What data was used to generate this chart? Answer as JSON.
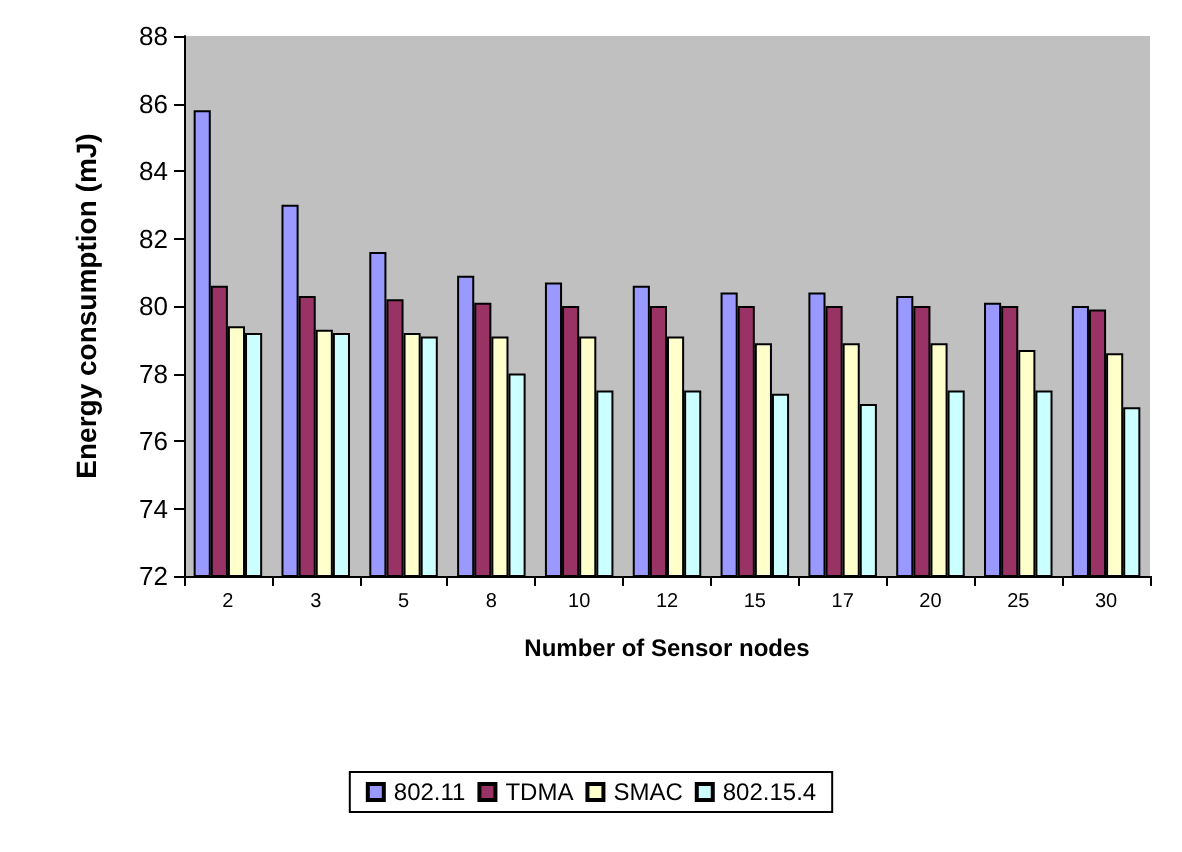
{
  "chart_data": {
    "type": "bar",
    "xlabel": "Number of Sensor nodes",
    "ylabel": "Energy consumption (mJ)",
    "categories": [
      "2",
      "3",
      "5",
      "8",
      "10",
      "12",
      "15",
      "17",
      "20",
      "25",
      "30"
    ],
    "series": [
      {
        "name": "802.11",
        "color": "#9999ff",
        "values": [
          85.8,
          83.0,
          81.6,
          80.9,
          80.7,
          80.6,
          80.4,
          80.4,
          80.3,
          80.1,
          80.0
        ]
      },
      {
        "name": "TDMA",
        "color": "#993366",
        "values": [
          80.6,
          80.3,
          80.2,
          80.1,
          80.0,
          80.0,
          80.0,
          80.0,
          80.0,
          80.0,
          79.9
        ]
      },
      {
        "name": "SMAC",
        "color": "#ffffcc",
        "values": [
          79.4,
          79.3,
          79.2,
          79.1,
          79.1,
          79.1,
          78.9,
          78.9,
          78.9,
          78.7,
          78.6
        ]
      },
      {
        "name": "802.15.4",
        "color": "#ccffff",
        "values": [
          79.2,
          79.2,
          79.1,
          78.0,
          77.5,
          77.5,
          77.4,
          77.1,
          77.5,
          77.5,
          77.0
        ]
      }
    ],
    "ylim": [
      72,
      88
    ],
    "yticks": [
      72,
      74,
      76,
      78,
      80,
      82,
      84,
      86,
      88
    ],
    "grid": false,
    "legend": "bottom"
  }
}
